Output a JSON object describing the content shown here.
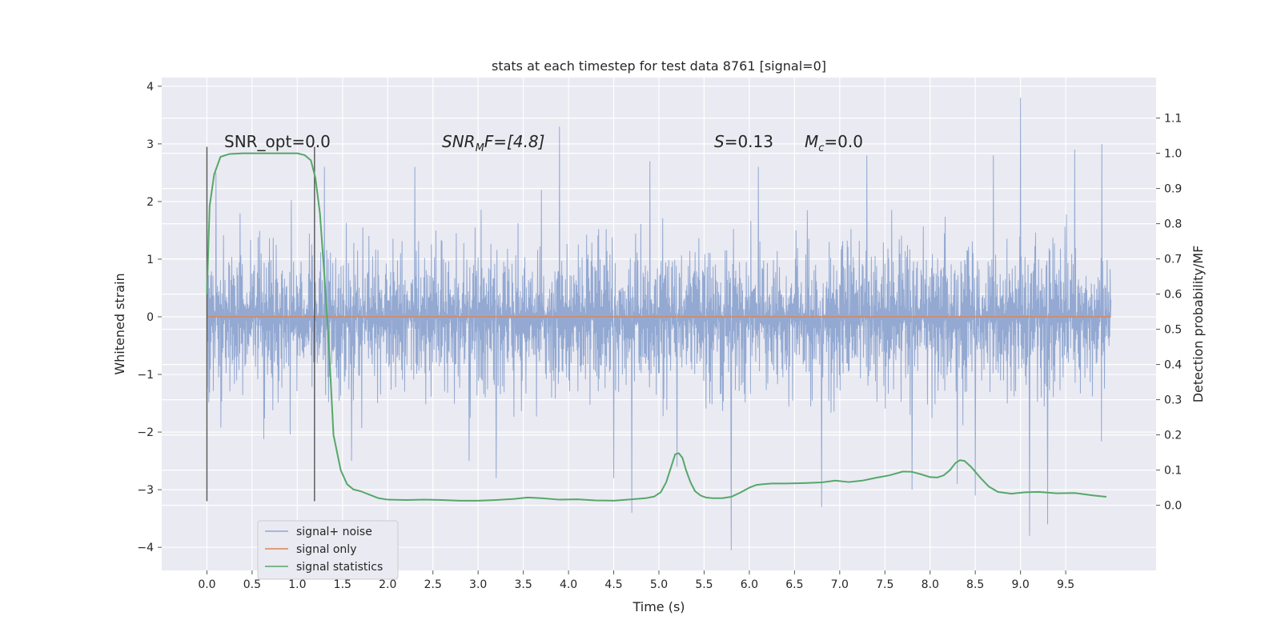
{
  "chart_data": {
    "type": "line",
    "title": "stats at each timestep for test data 8761 [signal=0]",
    "xlabel": "Time (s)",
    "ylabel": "Whitened strain",
    "y2label": "Detection probability/MF",
    "xlim": [
      -0.5,
      10.5
    ],
    "ylim": [
      -4.4,
      4.15
    ],
    "y2lim": [
      -0.185,
      1.215
    ],
    "xticks": [
      "0.0",
      "0.5",
      "1.0",
      "1.5",
      "2.0",
      "2.5",
      "3.0",
      "3.5",
      "4.0",
      "4.5",
      "5.0",
      "5.5",
      "6.0",
      "6.5",
      "7.0",
      "7.5",
      "8.0",
      "8.5",
      "9.0",
      "9.5"
    ],
    "yticks": [
      "−4",
      "−3",
      "−2",
      "−1",
      "0",
      "1",
      "2",
      "3",
      "4"
    ],
    "y2ticks": [
      "0.0",
      "0.1",
      "0.2",
      "0.3",
      "0.4",
      "0.5",
      "0.6",
      "0.7",
      "0.8",
      "0.9",
      "1.0",
      "1.1"
    ],
    "grid": true,
    "legend_position": "lower-left",
    "annotations": {
      "snr_opt": "SNR_opt=0.0",
      "snr_mf_prefix": "SNR",
      "snr_mf_sub": "M",
      "snr_mf_suffix": "F=[4.8]",
      "s_var": "S",
      "s_value": "=0.13",
      "mc_var": "M",
      "mc_sub": "c",
      "mc_value": "=0.0"
    },
    "vlines_x": [
      0.0,
      1.19
    ],
    "series": [
      {
        "name": "signal+ noise",
        "color": "#8ea5d0",
        "noise_sigma": 0.65,
        "x_range": [
          0.0,
          10.0
        ],
        "spikes": [
          [
            0.1,
            2.5
          ],
          [
            1.3,
            2.6
          ],
          [
            1.6,
            -2.5
          ],
          [
            2.3,
            2.6
          ],
          [
            2.9,
            -2.5
          ],
          [
            3.2,
            -2.8
          ],
          [
            3.7,
            2.2
          ],
          [
            3.9,
            3.3
          ],
          [
            4.5,
            -2.8
          ],
          [
            4.7,
            -3.4
          ],
          [
            4.9,
            2.7
          ],
          [
            5.2,
            -2.6
          ],
          [
            5.8,
            -4.05
          ],
          [
            6.1,
            2.6
          ],
          [
            6.8,
            -3.3
          ],
          [
            7.3,
            2.8
          ],
          [
            7.8,
            -3.0
          ],
          [
            8.3,
            -2.9
          ],
          [
            8.5,
            -3.1
          ],
          [
            8.7,
            2.8
          ],
          [
            9.0,
            3.8
          ],
          [
            9.1,
            -3.8
          ],
          [
            9.3,
            -3.6
          ],
          [
            9.6,
            2.9
          ],
          [
            9.9,
            3.0
          ]
        ]
      },
      {
        "name": "signal only",
        "color": "#dd8452",
        "x": [
          0.0,
          10.0
        ],
        "y": [
          0.0,
          0.0
        ]
      },
      {
        "name": "signal statistics",
        "color": "#55a868",
        "x": [
          0.0,
          0.03,
          0.08,
          0.15,
          0.25,
          0.4,
          0.6,
          0.8,
          1.0,
          1.08,
          1.15,
          1.2,
          1.25,
          1.3,
          1.35,
          1.4,
          1.48,
          1.55,
          1.62,
          1.7,
          1.8,
          1.9,
          2.0,
          2.2,
          2.4,
          2.6,
          2.8,
          3.0,
          3.2,
          3.4,
          3.55,
          3.7,
          3.9,
          4.1,
          4.3,
          4.5,
          4.7,
          4.85,
          4.95,
          5.02,
          5.08,
          5.13,
          5.18,
          5.22,
          5.26,
          5.3,
          5.35,
          5.4,
          5.46,
          5.52,
          5.6,
          5.7,
          5.8,
          5.9,
          6.0,
          6.08,
          6.15,
          6.25,
          6.4,
          6.6,
          6.8,
          6.95,
          7.1,
          7.25,
          7.4,
          7.55,
          7.7,
          7.8,
          7.9,
          8.0,
          8.08,
          8.15,
          8.22,
          8.28,
          8.33,
          8.38,
          8.45,
          8.55,
          8.65,
          8.75,
          8.9,
          9.05,
          9.2,
          9.4,
          9.6,
          9.8,
          9.95
        ],
        "y": [
          0.6,
          0.85,
          0.94,
          0.99,
          0.998,
          1.0,
          1.0,
          1.0,
          1.0,
          0.995,
          0.98,
          0.93,
          0.83,
          0.65,
          0.45,
          0.2,
          0.1,
          0.06,
          0.045,
          0.04,
          0.03,
          0.02,
          0.016,
          0.015,
          0.016,
          0.015,
          0.013,
          0.013,
          0.015,
          0.018,
          0.022,
          0.02,
          0.016,
          0.017,
          0.014,
          0.013,
          0.017,
          0.02,
          0.025,
          0.037,
          0.065,
          0.105,
          0.145,
          0.148,
          0.135,
          0.1,
          0.065,
          0.04,
          0.028,
          0.022,
          0.02,
          0.02,
          0.024,
          0.036,
          0.05,
          0.058,
          0.06,
          0.062,
          0.062,
          0.063,
          0.065,
          0.07,
          0.066,
          0.07,
          0.078,
          0.085,
          0.096,
          0.095,
          0.088,
          0.08,
          0.079,
          0.085,
          0.1,
          0.12,
          0.128,
          0.126,
          0.11,
          0.08,
          0.053,
          0.038,
          0.033,
          0.037,
          0.038,
          0.034,
          0.035,
          0.028,
          0.024
        ],
        "axis": "right"
      }
    ]
  }
}
